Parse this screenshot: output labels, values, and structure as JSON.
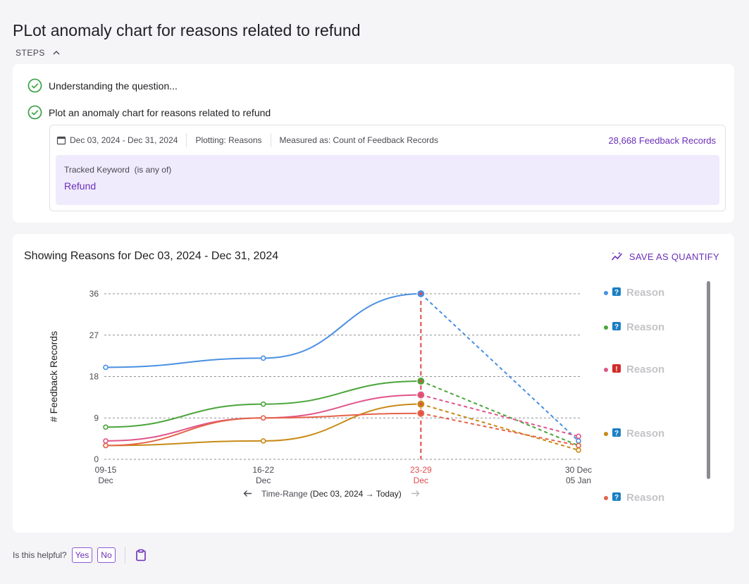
{
  "page": {
    "title": "PLot anomaly chart for reasons related to refund",
    "steps_label": "STEPS"
  },
  "steps": [
    {
      "label": "Understanding the question..."
    },
    {
      "label": "Plot an anomaly chart for reasons related to refund"
    }
  ],
  "details": {
    "date_range": "Dec 03, 2024 - Dec 31, 2024",
    "plotting": "Plotting: Reasons",
    "measured": "Measured as: Count of Feedback Records",
    "count": "28,668 Feedback Records",
    "keyword_label": "Tracked Keyword",
    "keyword_qualifier": "(is any of)",
    "keyword_value": "Refund"
  },
  "chart_card": {
    "title": "Showing Reasons for Dec 03, 2024 - Dec 31, 2024",
    "save_label": "SAVE AS QUANTIFY",
    "time_range_label": "Time-Range",
    "time_range_value": "(Dec 03, 2024 → Today)"
  },
  "chart_data": {
    "type": "line",
    "ylabel": "# Feedback Records",
    "ylim": [
      0,
      36
    ],
    "yticks": [
      0,
      9,
      18,
      27,
      36
    ],
    "categories": [
      {
        "top": "09-15",
        "bottom": "Dec"
      },
      {
        "top": "16-22",
        "bottom": "Dec"
      },
      {
        "top": "23-29",
        "bottom": "Dec",
        "highlight": true
      },
      {
        "top": "30 Dec",
        "bottom": "05 Jan"
      }
    ],
    "highlight_index": 2,
    "series": [
      {
        "name": "Reason",
        "color": "#4a90e2",
        "values": [
          20,
          22,
          36,
          4
        ],
        "legend_badge": "?",
        "badge_color": "#1b7fc4"
      },
      {
        "name": "Reason",
        "color": "#4aa53a",
        "values": [
          7,
          12,
          17,
          3
        ],
        "legend_badge": "?",
        "badge_color": "#1b7fc4"
      },
      {
        "name": "Reason",
        "color": "#e0558a",
        "values": [
          4,
          9,
          14,
          5
        ],
        "legend_badge": "!",
        "badge_color": "#d12b2b"
      },
      {
        "name": "Reason",
        "color": "#c88a17",
        "values": [
          3,
          4,
          12,
          2
        ],
        "legend_badge": "?",
        "badge_color": "#1b7fc4"
      },
      {
        "name": "Reason",
        "color": "#e4644a",
        "values": [
          3,
          9,
          10,
          3
        ],
        "legend_badge": "?",
        "badge_color": "#1b7fc4"
      }
    ]
  },
  "feedback": {
    "question": "Is this helpful?",
    "yes": "Yes",
    "no": "No"
  }
}
